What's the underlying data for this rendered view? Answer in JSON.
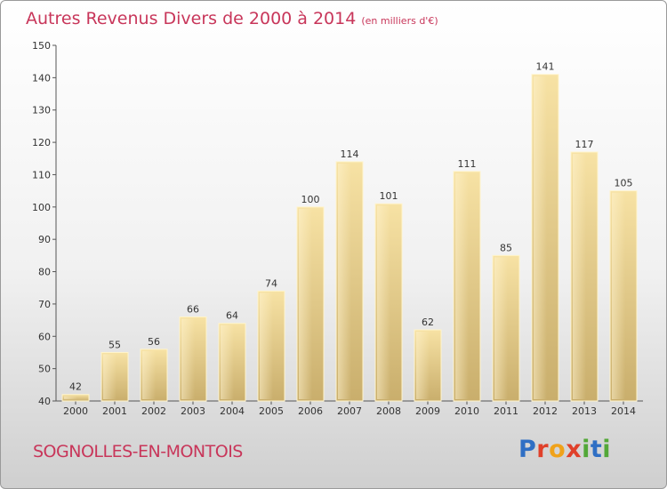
{
  "chart_data": {
    "type": "bar",
    "title": "Autres Revenus Divers de 2000 à 2014",
    "unit_note": "(en milliers d'€)",
    "categories": [
      "2000",
      "2001",
      "2002",
      "2003",
      "2004",
      "2005",
      "2006",
      "2007",
      "2008",
      "2009",
      "2010",
      "2011",
      "2012",
      "2013",
      "2014"
    ],
    "values": [
      42,
      55,
      56,
      66,
      64,
      74,
      100,
      114,
      101,
      62,
      111,
      85,
      141,
      117,
      105
    ],
    "ylim": [
      40,
      150
    ],
    "yticks": [
      40,
      50,
      60,
      70,
      80,
      90,
      100,
      110,
      120,
      130,
      140,
      150
    ],
    "grid": false,
    "bar_color": "#e8cf8a"
  },
  "footer": {
    "location": "SOGNOLLES-EN-MONTOIS",
    "brand": "Proxiti"
  }
}
